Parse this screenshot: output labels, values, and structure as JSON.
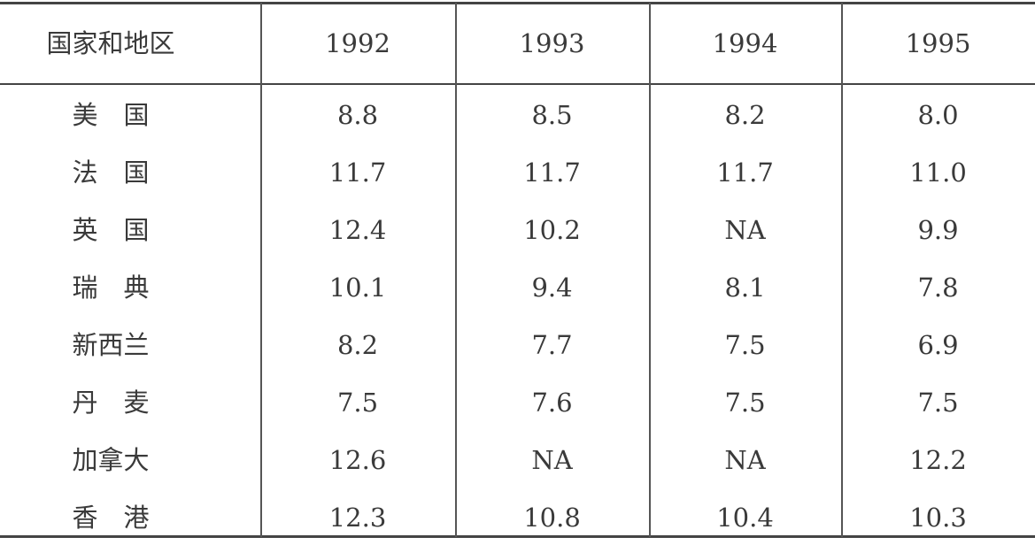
{
  "table": {
    "header": [
      "国家和地区",
      "1992",
      "1993",
      "1994",
      "1995"
    ],
    "rows": [
      [
        "美　国",
        "8.8",
        "8.5",
        "8.2",
        "8.0"
      ],
      [
        "法　国",
        "11.7",
        "11.7",
        "11.7",
        "11.0"
      ],
      [
        "英　国",
        "12.4",
        "10.2",
        "NA",
        "9.9"
      ],
      [
        "瑞　典",
        "10.1",
        "9.4",
        "8.1",
        "7.8"
      ],
      [
        "新西兰",
        "8.2",
        "7.7",
        "7.5",
        "6.9"
      ],
      [
        "丹　麦",
        "7.5",
        "7.6",
        "7.5",
        "7.5"
      ],
      [
        "加拿大",
        "12.6",
        "NA",
        "NA",
        "12.2"
      ],
      [
        "香　港",
        "12.3",
        "10.8",
        "10.4",
        "10.3"
      ]
    ]
  }
}
